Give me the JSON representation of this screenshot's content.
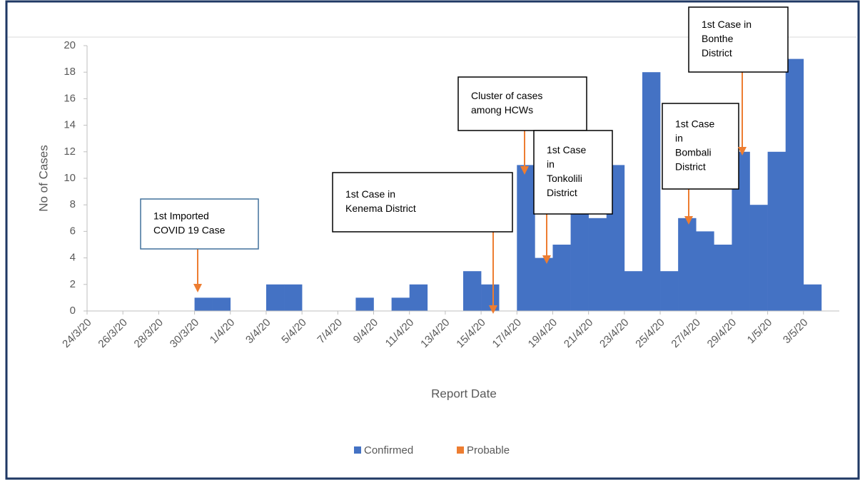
{
  "chart_data": {
    "type": "bar",
    "x_label": "Report Date",
    "y_label": "No of Cases",
    "categories": [
      "24/3/20",
      null,
      "26/3/20",
      null,
      "28/3/20",
      null,
      "30/3/20",
      null,
      "1/4/20",
      null,
      "3/4/20",
      null,
      "5/4/20",
      null,
      "7/4/20",
      null,
      "9/4/20",
      null,
      "11/4/20",
      null,
      "13/4/20",
      null,
      "15/4/20",
      null,
      "17/4/20",
      null,
      "19/4/20",
      null,
      "21/4/20",
      null,
      "23/4/20",
      null,
      "25/4/20",
      null,
      "27/4/20",
      null,
      "29/4/20",
      null,
      "1/5/20",
      null,
      "3/5/20",
      null
    ],
    "series": [
      {
        "name": "Confirmed",
        "color": "#4472c4",
        "values": [
          0,
          0,
          0,
          0,
          0,
          0,
          1,
          1,
          0,
          0,
          2,
          2,
          0,
          0,
          0,
          1,
          0,
          1,
          2,
          0,
          0,
          3,
          2,
          0,
          11,
          4,
          5,
          8,
          7,
          11,
          3,
          18,
          3,
          7,
          6,
          5,
          12,
          8,
          12,
          19,
          2,
          0
        ]
      },
      {
        "name": "Probable",
        "color": "#ed7d31",
        "values": [
          0,
          0,
          0,
          0,
          0,
          0,
          0,
          0,
          0,
          0,
          0,
          0,
          0,
          0,
          0,
          0,
          0,
          0,
          0,
          0,
          0,
          0,
          0,
          0,
          0,
          0,
          0,
          0,
          0,
          0,
          0,
          0,
          0,
          0,
          0,
          0,
          0,
          0,
          0,
          0,
          0,
          0
        ]
      }
    ],
    "ylim": [
      0,
      20
    ],
    "yticks": [
      0,
      2,
      4,
      6,
      8,
      10,
      12,
      14,
      16,
      18,
      20
    ],
    "legend": "bottom",
    "annotations": [
      {
        "lines": [
          "1st Imported",
          "COVID 19 Case"
        ]
      },
      {
        "lines": [
          "1st Case in",
          "Kenema District"
        ]
      },
      {
        "lines": [
          "Cluster of cases",
          "among HCWs"
        ]
      },
      {
        "lines": [
          "1st Case",
          "in",
          "Tonkolili",
          "District"
        ]
      },
      {
        "lines": [
          "1st Case",
          "in",
          "Bombali",
          "District"
        ]
      },
      {
        "lines": [
          "1st Case in",
          "Bonthe",
          "District"
        ]
      }
    ]
  }
}
